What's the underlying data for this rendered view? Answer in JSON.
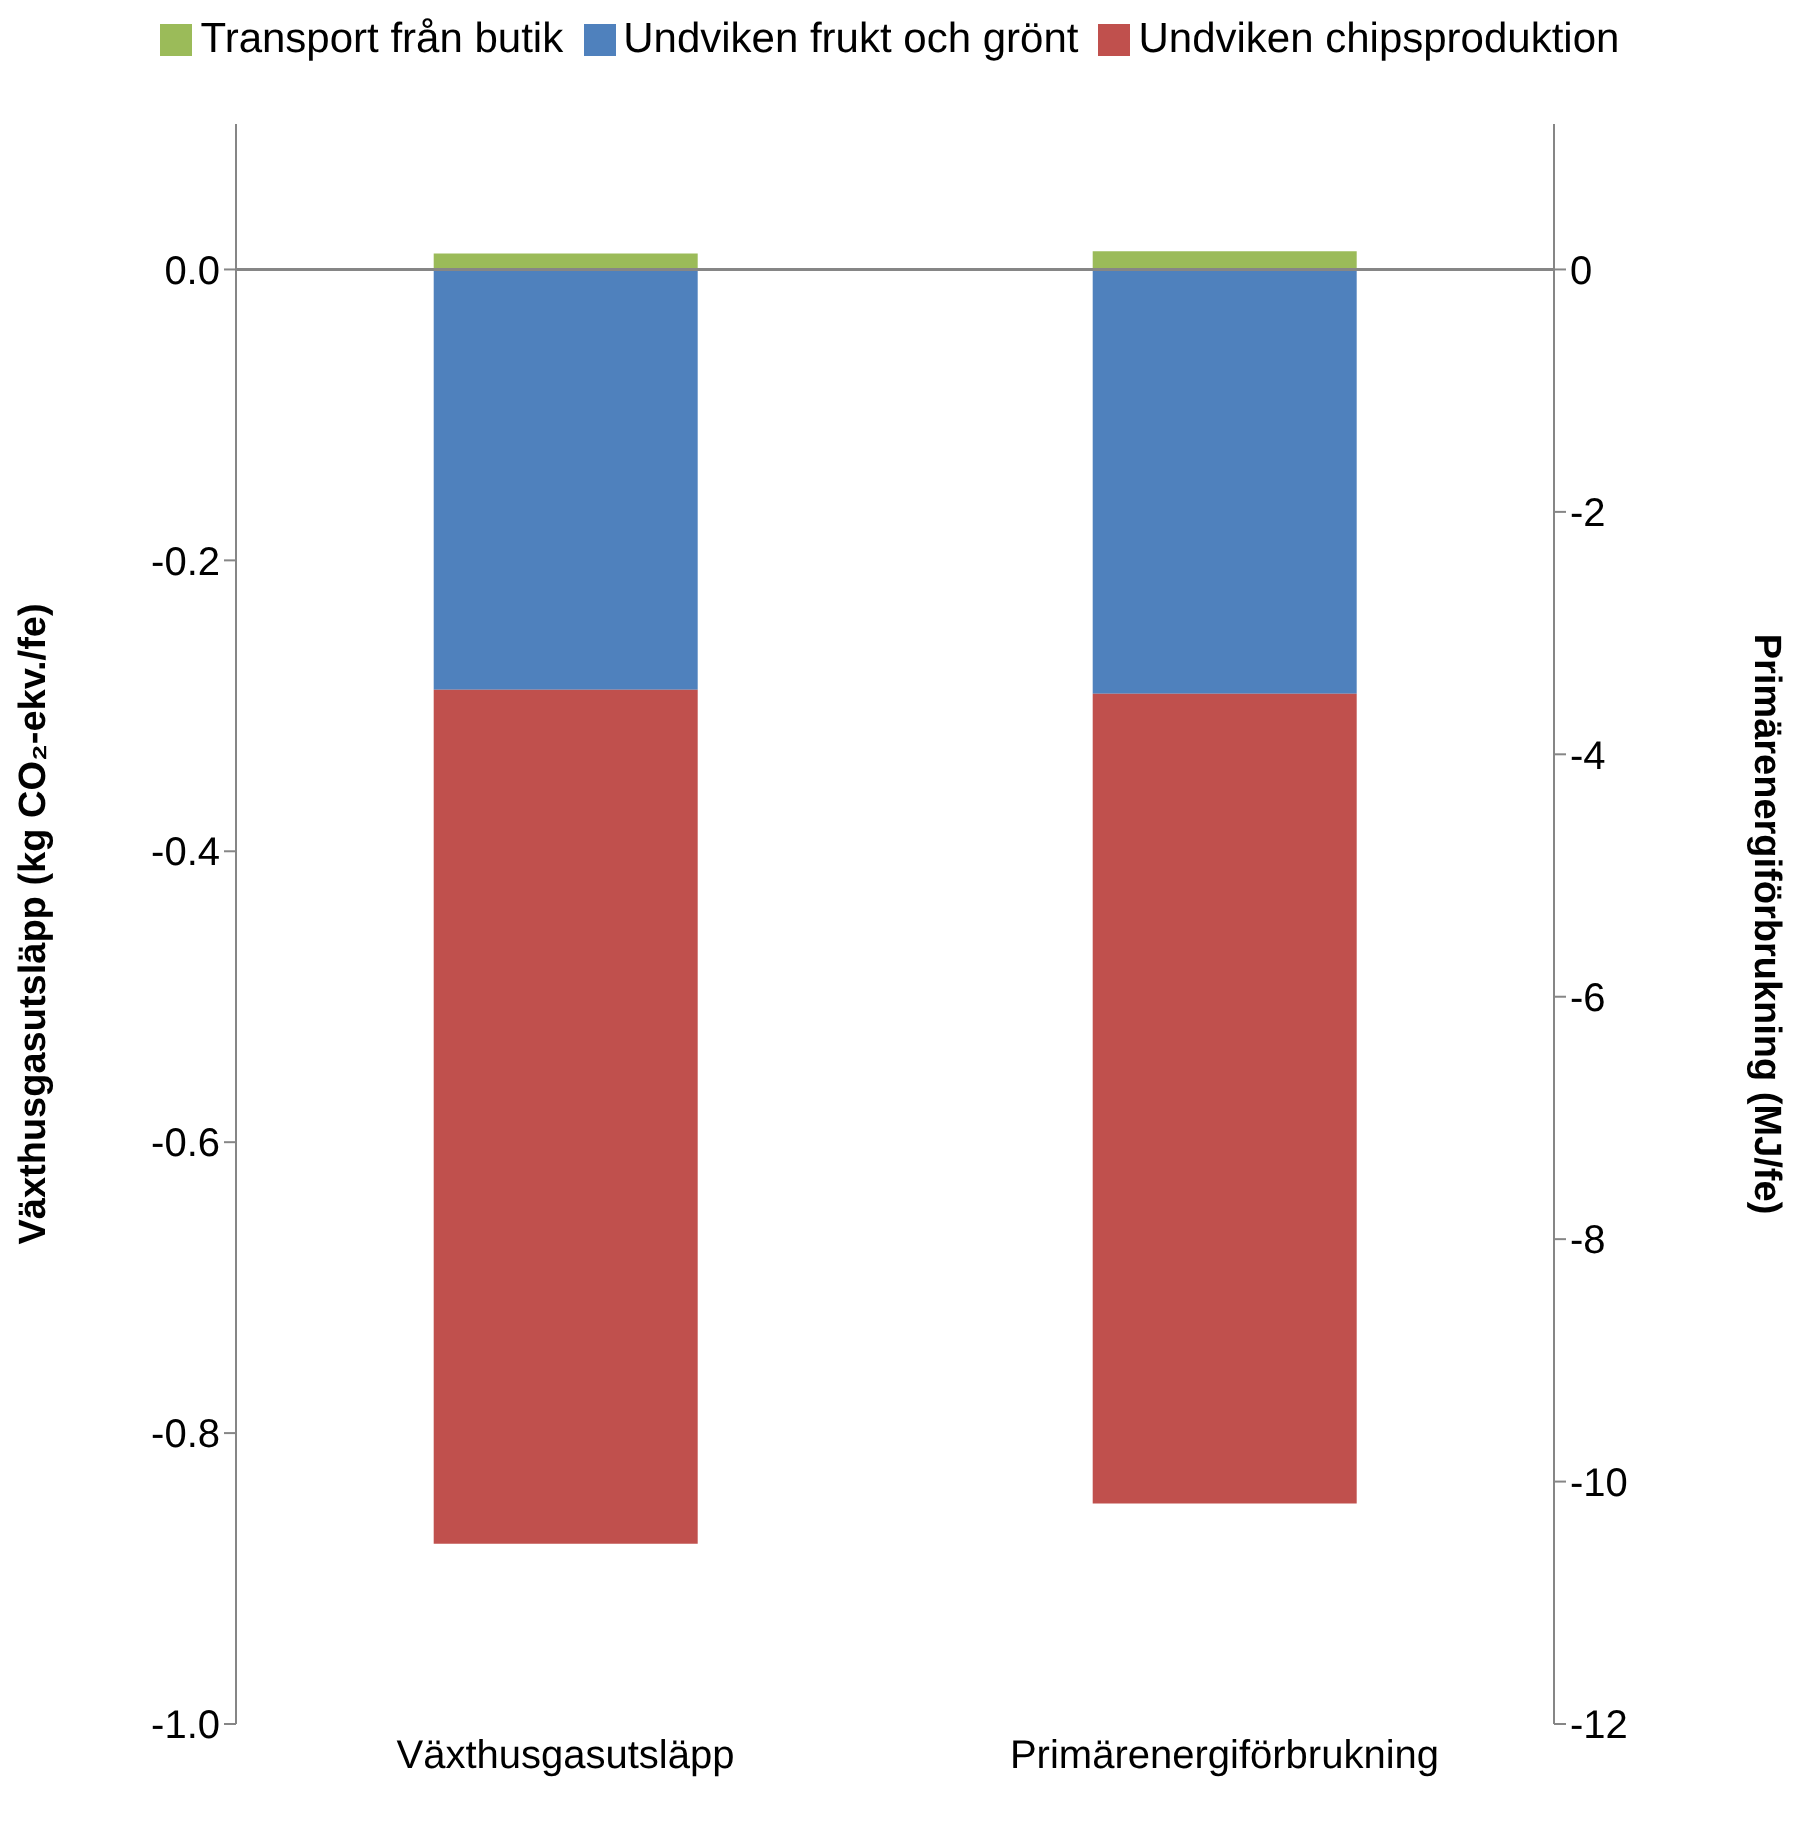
{
  "chart_data": {
    "type": "bar",
    "stacked": true,
    "categories": [
      "Växthusgasutsläpp",
      "Primärenergiförbrukning"
    ],
    "series": [
      {
        "name": "Transport från butik",
        "color": "#9bbb59",
        "values": [
          0.011,
          null
        ]
      },
      {
        "name": "Undviken frukt och grönt",
        "color": "#4f81bd",
        "values": [
          -0.289,
          null
        ]
      },
      {
        "name": "Undviken chipsproduktion",
        "color": "#c0504d",
        "values": [
          -0.587,
          null
        ]
      },
      {
        "color": "#9bbb59",
        "values": [
          null,
          0.15
        ],
        "axis": "y2"
      },
      {
        "color": "#4f81bd",
        "values": [
          null,
          -3.5
        ],
        "axis": "y2"
      },
      {
        "color": "#c0504d",
        "values": [
          null,
          -6.68
        ],
        "axis": "y2"
      }
    ],
    "ylabel": "Växthusgasutsläpp (kg CO₂-ekv./fe)",
    "y2label": "Primärenergiförbrukning (MJ/fe)",
    "ylim": [
      -1,
      0.1
    ],
    "yticks": [
      {
        "value": 0,
        "label": "0.0"
      },
      -0.2,
      -0.4,
      -0.6,
      -0.8,
      {
        "value": -1,
        "label": "-1.0"
      }
    ],
    "y2lim": [
      -12,
      1.2
    ],
    "y2ticks": [
      0,
      -2,
      -4,
      -6,
      -8,
      -10,
      -12
    ],
    "ref_lines": [
      {
        "axis": "y",
        "value": 0,
        "color": "#868686"
      }
    ],
    "legend": "top",
    "grid": false
  }
}
